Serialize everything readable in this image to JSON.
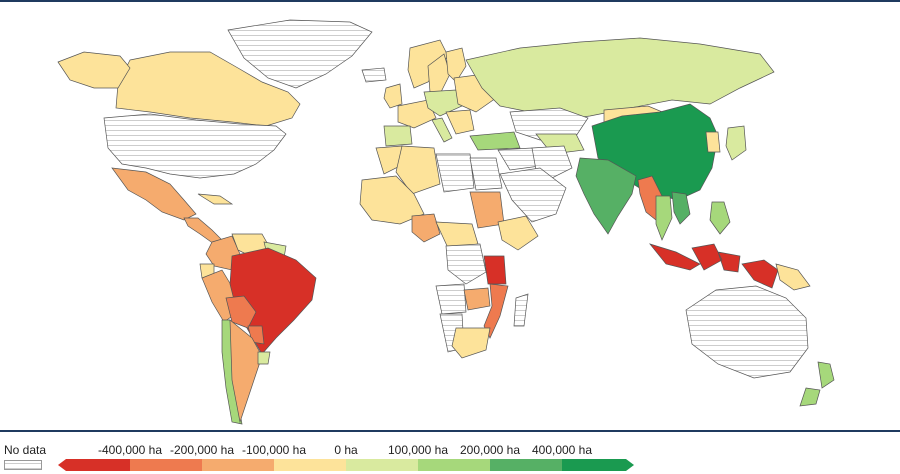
{
  "colors": {
    "nodata": "#ffffff",
    "hatch": "#c8c8c8",
    "bins": [
      "#d73027",
      "#ee7a4f",
      "#f5ab6e",
      "#fde39a",
      "#d9ea9f",
      "#a6d87b",
      "#56b065",
      "#1a9a50"
    ]
  },
  "legend": {
    "nodata_label": "No data",
    "labels": [
      "-400,000 ha",
      "-200,000 ha",
      "-100,000 ha",
      "0 ha",
      "100,000 ha",
      "200,000 ha",
      "400,000 ha"
    ]
  },
  "regions": [
    {
      "name": "Greenland",
      "bin": "nodata"
    },
    {
      "name": "Canada",
      "bin": 3
    },
    {
      "name": "Alaska",
      "bin": 3
    },
    {
      "name": "United States",
      "bin": "nodata"
    },
    {
      "name": "Mexico",
      "bin": 2
    },
    {
      "name": "Central America",
      "bin": 2
    },
    {
      "name": "Cuba",
      "bin": 3
    },
    {
      "name": "Colombia",
      "bin": 2
    },
    {
      "name": "Venezuela",
      "bin": 3
    },
    {
      "name": "Guianas",
      "bin": 4
    },
    {
      "name": "Ecuador",
      "bin": 3
    },
    {
      "name": "Peru",
      "bin": 2
    },
    {
      "name": "Brazil",
      "bin": 0
    },
    {
      "name": "Bolivia",
      "bin": 1
    },
    {
      "name": "Paraguay",
      "bin": 1
    },
    {
      "name": "Chile",
      "bin": 5
    },
    {
      "name": "Argentina",
      "bin": 2
    },
    {
      "name": "Uruguay",
      "bin": 4
    },
    {
      "name": "Iceland",
      "bin": "nodata"
    },
    {
      "name": "Norway",
      "bin": 3
    },
    {
      "name": "Sweden",
      "bin": 3
    },
    {
      "name": "Finland",
      "bin": 3
    },
    {
      "name": "United Kingdom",
      "bin": 3
    },
    {
      "name": "Western Europe",
      "bin": 3
    },
    {
      "name": "Spain",
      "bin": 4
    },
    {
      "name": "Central Europe",
      "bin": 4
    },
    {
      "name": "Eastern Europe",
      "bin": 3
    },
    {
      "name": "Italy",
      "bin": 4
    },
    {
      "name": "Balkans",
      "bin": 3
    },
    {
      "name": "Turkey",
      "bin": 5
    },
    {
      "name": "Russia",
      "bin": 4
    },
    {
      "name": "Kazakhstan",
      "bin": "nodata"
    },
    {
      "name": "Central Asia",
      "bin": 4
    },
    {
      "name": "Mongolia",
      "bin": 3
    },
    {
      "name": "China",
      "bin": 7
    },
    {
      "name": "Korea",
      "bin": 3
    },
    {
      "name": "Japan",
      "bin": 4
    },
    {
      "name": "Middle East",
      "bin": "nodata"
    },
    {
      "name": "Iran",
      "bin": "nodata"
    },
    {
      "name": "Arabia",
      "bin": "nodata"
    },
    {
      "name": "India",
      "bin": 6
    },
    {
      "name": "Myanmar",
      "bin": 1
    },
    {
      "name": "Thailand",
      "bin": 5
    },
    {
      "name": "Vietnam",
      "bin": 6
    },
    {
      "name": "Indonesia",
      "bin": 0
    },
    {
      "name": "Papua New Guinea",
      "bin": 3
    },
    {
      "name": "Philippines",
      "bin": 5
    },
    {
      "name": "Australia",
      "bin": "nodata"
    },
    {
      "name": "New Zealand",
      "bin": 5
    },
    {
      "name": "Morocco",
      "bin": 3
    },
    {
      "name": "Algeria",
      "bin": 3
    },
    {
      "name": "Libya",
      "bin": "nodata"
    },
    {
      "name": "Egypt",
      "bin": "nodata"
    },
    {
      "name": "West Africa",
      "bin": 3
    },
    {
      "name": "Nigeria",
      "bin": 2
    },
    {
      "name": "Sudan",
      "bin": 2
    },
    {
      "name": "Ethiopia",
      "bin": 3
    },
    {
      "name": "Central Africa",
      "bin": 3
    },
    {
      "name": "DR Congo",
      "bin": "nodata"
    },
    {
      "name": "Tanzania",
      "bin": 0
    },
    {
      "name": "Angola",
      "bin": "nodata"
    },
    {
      "name": "Zambia",
      "bin": 2
    },
    {
      "name": "Mozambique",
      "bin": 1
    },
    {
      "name": "Namibia",
      "bin": "nodata"
    },
    {
      "name": "South Africa",
      "bin": 3
    },
    {
      "name": "Madagascar",
      "bin": "nodata"
    }
  ]
}
